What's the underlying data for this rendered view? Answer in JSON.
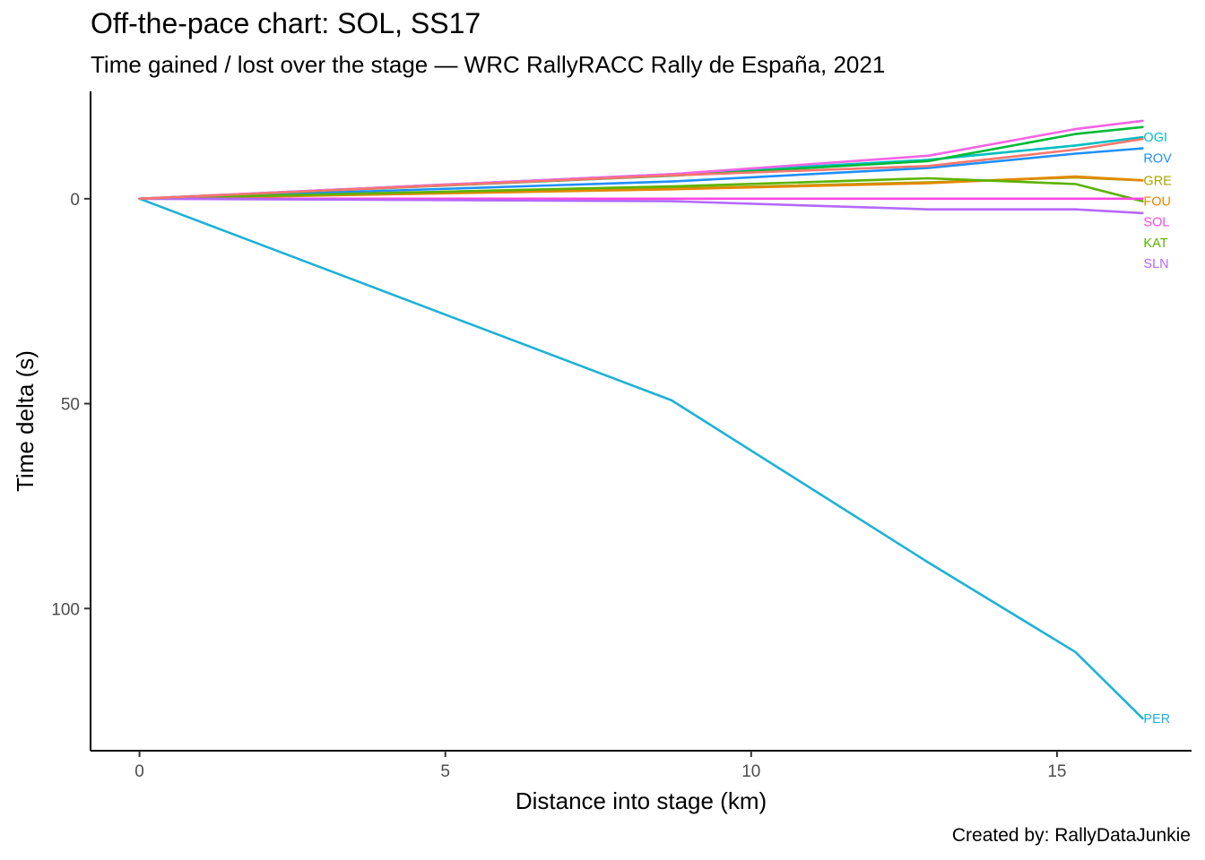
{
  "title": "Off-the-pace chart: SOL, SS17",
  "subtitle": "Time gained / lost over the stage — WRC RallyRACC Rally de España, 2021",
  "caption": "Created by: RallyDataJunkie",
  "chart_data": {
    "type": "line",
    "xlabel": "Distance into stage (km)",
    "ylabel": "Time delta (s)",
    "xlim": [
      -0.8,
      17.2
    ],
    "ylim": [
      -26.2,
      134.7
    ],
    "y_reversed": true,
    "x_ticks": [
      0,
      5,
      10,
      15
    ],
    "y_ticks": [
      0,
      50,
      100
    ],
    "grid": false,
    "legend": "none (series labelled at line ends)",
    "series": [
      {
        "name": "OGI",
        "color": "#00BFC4",
        "x": [
          0,
          8.7,
          12.9,
          15.3,
          16.4
        ],
        "y": [
          0,
          -6.0,
          -9.5,
          -13.0,
          -15.0
        ]
      },
      {
        "name": "ROV",
        "color": "#1F8FFF",
        "x": [
          0,
          8.7,
          12.9,
          15.3,
          16.4
        ],
        "y": [
          0,
          -4.2,
          -7.5,
          -11.0,
          -12.3
        ]
      },
      {
        "name": "GRE",
        "color": "#A3A500",
        "x": [
          0,
          8.7,
          12.9,
          15.3,
          16.4
        ],
        "y": [
          0,
          -2.5,
          -4.0,
          -5.2,
          -4.5
        ]
      },
      {
        "name": "FOU",
        "color": "#E58700",
        "x": [
          0,
          8.7,
          12.9,
          15.3,
          16.4
        ],
        "y": [
          0,
          -2.3,
          -3.8,
          -5.4,
          -4.5
        ]
      },
      {
        "name": "KAT",
        "color": "#5BB300",
        "x": [
          0,
          8.7,
          12.9,
          15.3,
          16.4
        ],
        "y": [
          0,
          -3.0,
          -5.0,
          -3.6,
          0.6
        ]
      },
      {
        "name": "SOL",
        "color": "#FF47E0",
        "x": [
          0,
          8.7,
          12.9,
          15.3,
          16.4
        ],
        "y": [
          0,
          0,
          0,
          0,
          0
        ]
      },
      {
        "name": "SLN",
        "color": "#B469FF",
        "x": [
          0,
          8.7,
          12.9,
          15.3,
          16.4
        ],
        "y": [
          0,
          0.6,
          2.6,
          2.6,
          3.5
        ]
      },
      {
        "name": "PER",
        "color": "#1DB2D6",
        "x": [
          0,
          8.7,
          12.9,
          15.3,
          16.4
        ],
        "y": [
          0,
          49.2,
          88.8,
          110.6,
          126.8
        ]
      },
      {
        "name": "",
        "color": "#00BA38",
        "x": [
          0,
          8.7,
          12.9,
          15.3,
          16.4
        ],
        "y": [
          0,
          -5.6,
          -9.2,
          -15.8,
          -17.5
        ]
      },
      {
        "name": "",
        "color": "#F564E3",
        "x": [
          0,
          8.7,
          12.9,
          15.3,
          16.4
        ],
        "y": [
          0,
          -6.0,
          -10.5,
          -17.0,
          -19.0
        ]
      },
      {
        "name": "",
        "color": "#F8766D",
        "x": [
          0,
          8.7,
          12.9,
          15.3,
          16.4
        ],
        "y": [
          0,
          -5.7,
          -8.0,
          -12.0,
          -14.6
        ]
      }
    ]
  }
}
